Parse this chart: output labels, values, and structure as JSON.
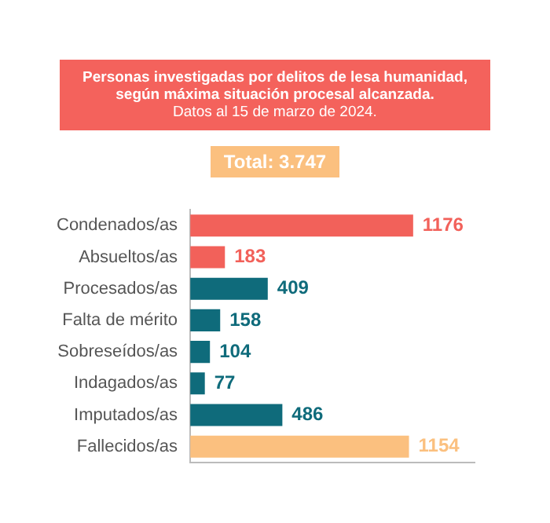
{
  "chart_data": {
    "type": "bar",
    "orientation": "horizontal",
    "title": "Personas investigadas por delitos de lesa humanidad, según máxima situación procesal alcanzada.",
    "subtitle": "Datos al 15 de marzo de 2024.",
    "annotations": [
      "Total: 3.747"
    ],
    "categories": [
      "Condenados/as",
      "Absueltos/as",
      "Procesados/as",
      "Falta de mérito",
      "Sobreseídos/as",
      "Indagados/as",
      "Imputados/as",
      "Fallecidos/as"
    ],
    "values": [
      1176,
      183,
      409,
      158,
      104,
      77,
      486,
      1154
    ],
    "colors": [
      "#f2615a",
      "#f2615a",
      "#0f6b7b",
      "#0f6b7b",
      "#0f6b7b",
      "#0f6b7b",
      "#0f6b7b",
      "#fbc07f"
    ],
    "data_labels": true,
    "legend": false,
    "tick_labels": "y"
  }
}
